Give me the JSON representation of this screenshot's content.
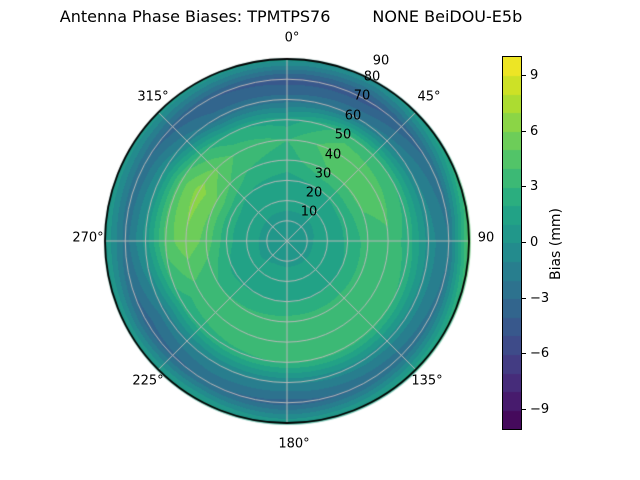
{
  "title": {
    "left": "Antenna Phase Biases: TPMTPS76",
    "right": "NONE BeiDOU-E5b"
  },
  "colors": {
    "background": "#ffffff",
    "grid_line": "#b8b8b8",
    "outline": "#000000",
    "text": "#000000"
  },
  "chart_data": {
    "type": "heatmap",
    "projection": "polar",
    "title": "Antenna Phase Biases: TPMTPS76        NONE BeiDOU-E5b",
    "angular_ticks": [
      "0°",
      "45°",
      "90",
      "135°",
      "180°",
      "225°",
      "270°",
      "315°"
    ],
    "angular_tick_values": [
      0,
      45,
      90,
      135,
      180,
      225,
      270,
      315
    ],
    "radial_ticks": [
      "10",
      "20",
      "30",
      "40",
      "50",
      "60",
      "70",
      "80",
      "90"
    ],
    "radial_tick_values": [
      10,
      20,
      30,
      40,
      50,
      60,
      70,
      80,
      90
    ],
    "radial_range": [
      0,
      90
    ],
    "azimuth_zero_at_top_clockwise": true,
    "grid_on": true,
    "colorbar": {
      "label": "Bias (mm)",
      "ticks": [
        "9",
        "6",
        "3",
        "0",
        "−3",
        "−6",
        "−9"
      ],
      "tick_values": [
        9,
        6,
        3,
        0,
        -3,
        -6,
        -9
      ],
      "vmin": -10,
      "vmax": 10,
      "levels": 20,
      "position": "right"
    },
    "colormap": {
      "name": "viridis",
      "stops": [
        "#440154",
        "#482475",
        "#414487",
        "#355f8d",
        "#2a788e",
        "#21918c",
        "#22a884",
        "#44bf70",
        "#7ad151",
        "#bddf26",
        "#fde725"
      ]
    },
    "grid": {
      "azimuth_deg": [
        0,
        30,
        60,
        90,
        120,
        150,
        180,
        210,
        240,
        270,
        300,
        330
      ],
      "radius_deg": [
        0,
        10,
        20,
        30,
        40,
        50,
        60,
        70,
        80,
        90
      ],
      "bias_mm": [
        [
          0.5,
          0.5,
          0.5,
          0.5,
          0.5,
          0.5,
          0.5,
          0.5,
          0.5,
          0.5,
          0.5,
          0.5
        ],
        [
          0.8,
          0.8,
          0.8,
          0.9,
          0.9,
          0.9,
          0.9,
          0.9,
          0.8,
          0.8,
          0.8,
          0.8
        ],
        [
          1.2,
          1.2,
          1.3,
          1.3,
          1.3,
          1.3,
          1.3,
          1.3,
          1.2,
          1.3,
          1.3,
          1.2
        ],
        [
          1.6,
          2.0,
          2.2,
          2.2,
          2.0,
          2.0,
          2.0,
          2.0,
          1.8,
          2.3,
          2.3,
          1.8
        ],
        [
          2.5,
          4.0,
          4.2,
          3.5,
          3.5,
          3.5,
          3.5,
          3.2,
          3.0,
          4.6,
          5.0,
          3.0
        ],
        [
          3.0,
          4.8,
          4.5,
          3.8,
          4.0,
          4.0,
          4.0,
          3.8,
          3.5,
          5.8,
          6.5,
          3.8
        ],
        [
          1.5,
          3.5,
          3.0,
          2.5,
          3.0,
          3.2,
          3.0,
          2.8,
          2.5,
          4.5,
          4.5,
          2.2
        ],
        [
          -2.5,
          -2.0,
          -1.0,
          -0.5,
          -0.5,
          -0.5,
          -1.0,
          -1.0,
          -1.5,
          0.5,
          0.0,
          -2.5
        ],
        [
          -4.5,
          -4.5,
          -3.0,
          -2.0,
          -2.5,
          -3.0,
          -3.5,
          -3.0,
          -3.5,
          -2.5,
          -3.0,
          -4.0
        ],
        [
          0.5,
          0.0,
          2.0,
          5.0,
          2.5,
          1.5,
          1.0,
          1.5,
          1.0,
          1.0,
          0.5,
          0.5
        ]
      ]
    }
  }
}
